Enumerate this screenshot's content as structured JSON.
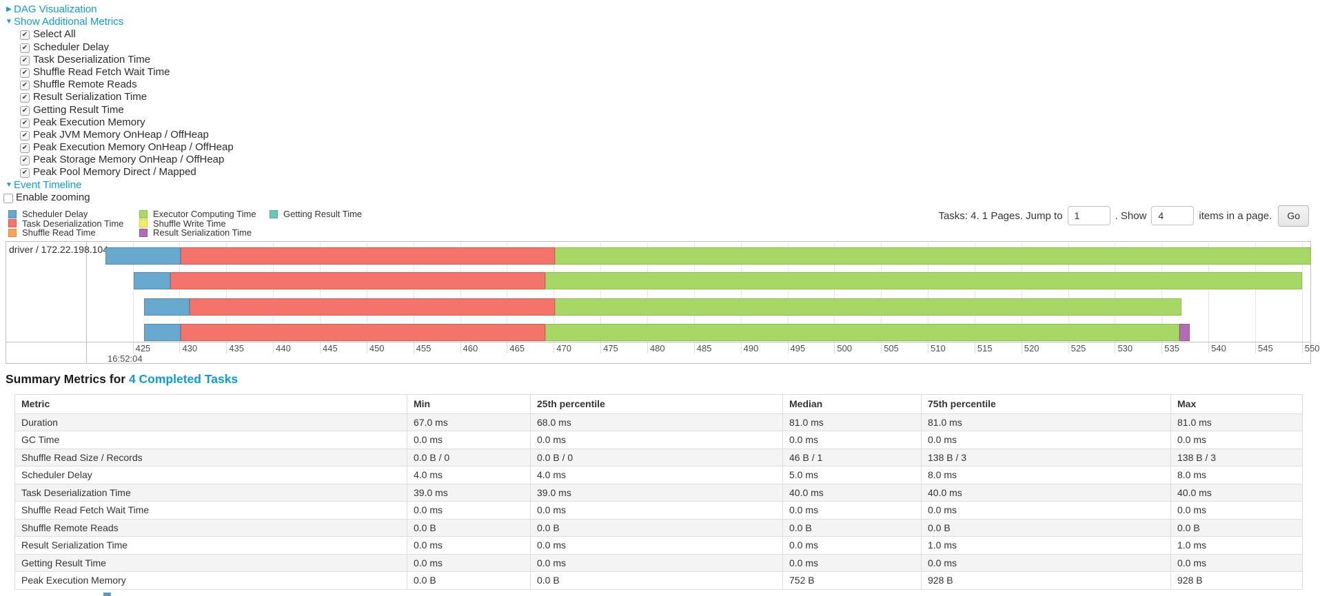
{
  "controls": {
    "dag_visualization": {
      "arrow": "▶",
      "label": "DAG Visualization"
    },
    "show_additional_metrics": {
      "arrow": "▼",
      "label": "Show Additional Metrics"
    },
    "metric_checkboxes": [
      {
        "label": "Select All",
        "checked": true
      },
      {
        "label": "Scheduler Delay",
        "checked": true
      },
      {
        "label": "Task Deserialization Time",
        "checked": true
      },
      {
        "label": "Shuffle Read Fetch Wait Time",
        "checked": true
      },
      {
        "label": "Shuffle Remote Reads",
        "checked": true
      },
      {
        "label": "Result Serialization Time",
        "checked": true
      },
      {
        "label": "Getting Result Time",
        "checked": true
      },
      {
        "label": "Peak Execution Memory",
        "checked": true
      },
      {
        "label": "Peak JVM Memory OnHeap / OffHeap",
        "checked": true
      },
      {
        "label": "Peak Execution Memory OnHeap / OffHeap",
        "checked": true
      },
      {
        "label": "Peak Storage Memory OnHeap / OffHeap",
        "checked": true
      },
      {
        "label": "Peak Pool Memory Direct / Mapped",
        "checked": true
      }
    ],
    "event_timeline": {
      "arrow": "▼",
      "label": "Event Timeline"
    },
    "enable_zooming": {
      "label": "Enable zooming",
      "checked": false
    }
  },
  "pagination": {
    "tasks_text": "Tasks: 4. 1 Pages. Jump to",
    "jump_value": "1",
    "show_text": ". Show",
    "show_value": "4",
    "items_text": "items in a page.",
    "go_label": "Go"
  },
  "chart_data": {
    "type": "timeline",
    "group_label": "driver / 172.22.198.104",
    "axis": {
      "start": 425,
      "end": 550,
      "step": 5,
      "unit": "ms",
      "major_label": "16:52:04"
    },
    "legend": [
      {
        "key": "scheduler_delay",
        "label": "Scheduler Delay"
      },
      {
        "key": "task_deserialization",
        "label": "Task Deserialization Time"
      },
      {
        "key": "shuffle_read",
        "label": "Shuffle Read Time"
      },
      {
        "key": "executor_computing",
        "label": "Executor Computing Time"
      },
      {
        "key": "shuffle_write",
        "label": "Shuffle Write Time"
      },
      {
        "key": "result_serialization",
        "label": "Result Serialization Time"
      },
      {
        "key": "getting_result",
        "label": "Getting Result Time"
      }
    ],
    "colors": {
      "scheduler_delay": {
        "fill": "#68A9CF",
        "border": "#4E8CB5"
      },
      "task_deserialization": {
        "fill": "#F4746B",
        "border": "#D95B54"
      },
      "shuffle_read": {
        "fill": "#FBA35B",
        "border": "#DE8A42"
      },
      "executor_computing": {
        "fill": "#A7D765",
        "border": "#8FBE4E"
      },
      "shuffle_write": {
        "fill": "#F5EB61",
        "border": "#D9CE4B"
      },
      "result_serialization": {
        "fill": "#B36DB3",
        "border": "#9A559A"
      },
      "getting_result": {
        "fill": "#67C8B4",
        "border": "#50AD99"
      }
    },
    "tasks": [
      {
        "segments": [
          {
            "metric": "scheduler_delay",
            "start": 422.1,
            "end": 430.1
          },
          {
            "metric": "task_deserialization",
            "start": 430.1,
            "end": 470.1
          },
          {
            "metric": "executor_computing",
            "start": 470.1,
            "end": 551.0
          }
        ]
      },
      {
        "segments": [
          {
            "metric": "scheduler_delay",
            "start": 425.1,
            "end": 429.0
          },
          {
            "metric": "task_deserialization",
            "start": 429.0,
            "end": 469.1
          },
          {
            "metric": "executor_computing",
            "start": 469.1,
            "end": 550.0
          }
        ]
      },
      {
        "segments": [
          {
            "metric": "scheduler_delay",
            "start": 426.2,
            "end": 431.1
          },
          {
            "metric": "task_deserialization",
            "start": 431.1,
            "end": 470.1
          },
          {
            "metric": "executor_computing",
            "start": 470.1,
            "end": 537.1
          }
        ]
      },
      {
        "segments": [
          {
            "metric": "scheduler_delay",
            "start": 426.2,
            "end": 430.1
          },
          {
            "metric": "task_deserialization",
            "start": 430.1,
            "end": 469.1
          },
          {
            "metric": "executor_computing",
            "start": 469.1,
            "end": 536.9
          },
          {
            "metric": "result_serialization",
            "start": 536.9,
            "end": 538.0
          }
        ]
      }
    ]
  },
  "summary": {
    "heading_prefix": "Summary Metrics for ",
    "heading_link": "4 Completed Tasks",
    "table": {
      "headers": [
        "Metric",
        "Min",
        "25th percentile",
        "Median",
        "75th percentile",
        "Max"
      ],
      "rows": [
        {
          "metric": "Duration",
          "values": [
            "67.0 ms",
            "68.0 ms",
            "81.0 ms",
            "81.0 ms",
            "81.0 ms"
          ]
        },
        {
          "metric": "GC Time",
          "values": [
            "0.0 ms",
            "0.0 ms",
            "0.0 ms",
            "0.0 ms",
            "0.0 ms"
          ]
        },
        {
          "metric": "Shuffle Read Size / Records",
          "values": [
            "0.0 B / 0",
            "0.0 B / 0",
            "46 B / 1",
            "138 B / 3",
            "138 B / 3"
          ]
        },
        {
          "metric": "Scheduler Delay",
          "values": [
            "4.0 ms",
            "4.0 ms",
            "5.0 ms",
            "8.0 ms",
            "8.0 ms"
          ]
        },
        {
          "metric": "Task Deserialization Time",
          "values": [
            "39.0 ms",
            "39.0 ms",
            "40.0 ms",
            "40.0 ms",
            "40.0 ms"
          ]
        },
        {
          "metric": "Shuffle Read Fetch Wait Time",
          "values": [
            "0.0 ms",
            "0.0 ms",
            "0.0 ms",
            "0.0 ms",
            "0.0 ms"
          ]
        },
        {
          "metric": "Shuffle Remote Reads",
          "values": [
            "0.0 B",
            "0.0 B",
            "0.0 B",
            "0.0 B",
            "0.0 B"
          ]
        },
        {
          "metric": "Result Serialization Time",
          "values": [
            "0.0 ms",
            "0.0 ms",
            "0.0 ms",
            "1.0 ms",
            "1.0 ms"
          ]
        },
        {
          "metric": "Getting Result Time",
          "values": [
            "0.0 ms",
            "0.0 ms",
            "0.0 ms",
            "0.0 ms",
            "0.0 ms"
          ]
        },
        {
          "metric": "Peak Execution Memory",
          "values": [
            "0.0 B",
            "0.0 B",
            "752 B",
            "928 B",
            "928 B"
          ]
        }
      ]
    }
  }
}
